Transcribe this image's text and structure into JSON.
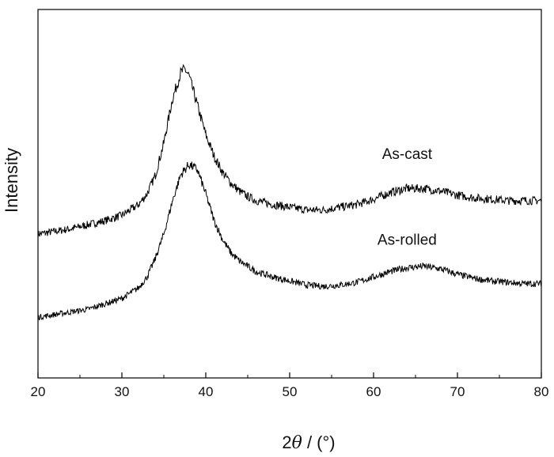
{
  "chart_data": {
    "type": "line",
    "title": "",
    "xlabel": {
      "symbol": "2",
      "variable": "θ",
      "unit": " / (°)"
    },
    "ylabel": "Intensity",
    "xlim": [
      20,
      80
    ],
    "xticks": [
      20,
      30,
      40,
      50,
      60,
      70,
      80
    ],
    "yticks_shown": false,
    "grid": false,
    "legend": "none",
    "series": [
      {
        "name": "As-cast",
        "color": "#000000",
        "x": [
          20,
          22,
          24,
          26,
          28,
          30,
          32,
          33,
          34,
          35,
          36,
          37,
          37.5,
          38,
          39,
          40,
          41,
          42,
          43,
          44,
          45,
          46,
          48,
          50,
          52,
          54,
          56,
          58,
          60,
          62,
          64,
          66,
          68,
          70,
          72,
          74,
          76,
          78,
          80
        ],
        "y": [
          0.62,
          0.64,
          0.66,
          0.69,
          0.72,
          0.76,
          0.84,
          0.92,
          1.06,
          1.3,
          1.62,
          1.82,
          1.85,
          1.8,
          1.58,
          1.36,
          1.2,
          1.08,
          1.0,
          0.94,
          0.9,
          0.87,
          0.84,
          0.82,
          0.8,
          0.8,
          0.82,
          0.84,
          0.88,
          0.93,
          0.96,
          0.96,
          0.94,
          0.91,
          0.89,
          0.88,
          0.87,
          0.87,
          0.87
        ]
      },
      {
        "name": "As-rolled",
        "color": "#000000",
        "x": [
          20,
          22,
          24,
          26,
          28,
          30,
          32,
          33,
          34,
          35,
          36,
          37,
          38,
          39,
          40,
          41,
          42,
          43,
          44,
          45,
          46,
          48,
          50,
          52,
          54,
          56,
          58,
          60,
          62,
          64,
          66,
          68,
          70,
          72,
          74,
          76,
          78,
          80
        ],
        "y": [
          0.0,
          0.02,
          0.04,
          0.06,
          0.1,
          0.14,
          0.22,
          0.3,
          0.44,
          0.62,
          0.86,
          1.06,
          1.14,
          1.1,
          0.92,
          0.72,
          0.58,
          0.48,
          0.42,
          0.38,
          0.34,
          0.3,
          0.27,
          0.24,
          0.23,
          0.24,
          0.26,
          0.3,
          0.34,
          0.37,
          0.38,
          0.36,
          0.32,
          0.29,
          0.27,
          0.26,
          0.25,
          0.25
        ]
      }
    ]
  }
}
